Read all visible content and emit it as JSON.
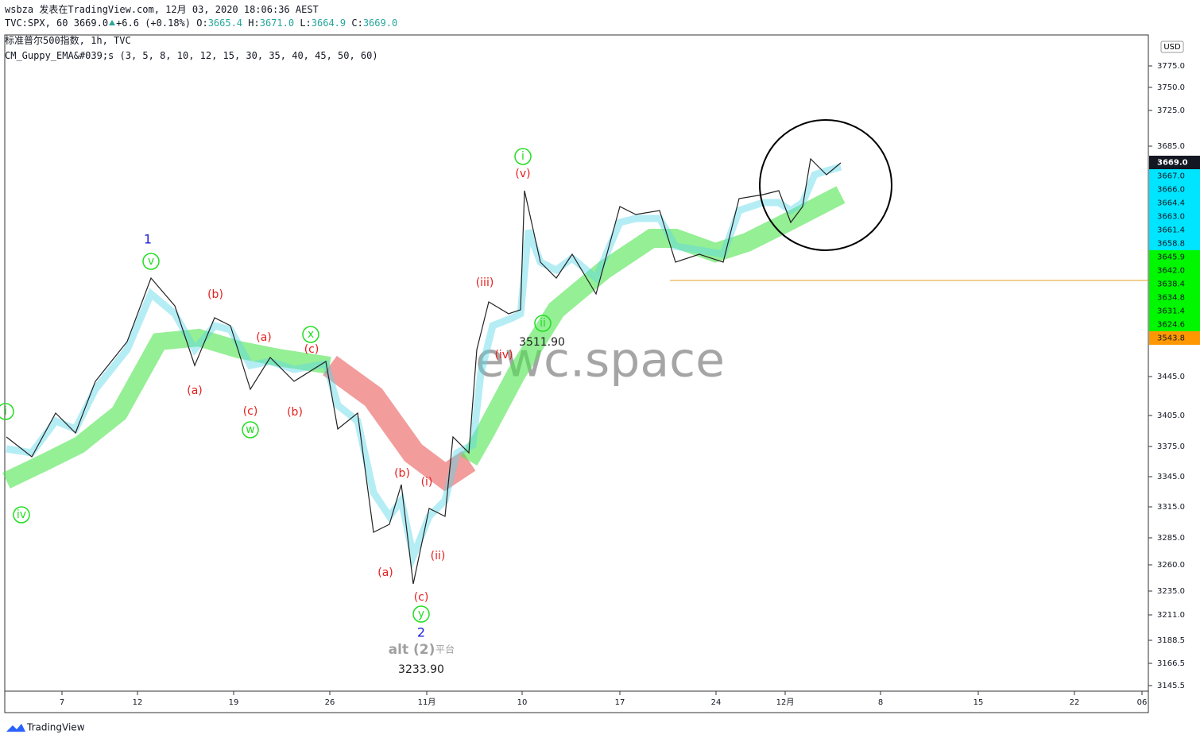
{
  "header": {
    "line1": "wsbza 发表在TradingView.com, 12月 03, 2020 18:06:36 AEST",
    "symbol": "TVC:SPX, 60",
    "last": "3669.0",
    "change": "+6.6 (+0.18%)",
    "ohlc": [
      {
        "label": "O:",
        "value": "3665.4"
      },
      {
        "label": "H:",
        "value": "3671.0"
      },
      {
        "label": "L:",
        "value": "3664.9"
      },
      {
        "label": "C:",
        "value": "3669.0"
      }
    ],
    "title": "标准普尔500指数, 1h, TVC",
    "indicator": "CM_Guppy_EMA&#039;s (3, 5, 8, 10, 12, 15, 30, 35, 40, 45, 50, 60)"
  },
  "price_axis": {
    "currency": "USD",
    "ticks": [
      "3775.0",
      "3750.0",
      "3725.0",
      "3685.0",
      "3445.0",
      "3405.0",
      "3375.0",
      "3345.0",
      "3315.0",
      "3285.0",
      "3260.0",
      "3235.0",
      "3211.0",
      "3188.5",
      "3166.5",
      "3145.5"
    ],
    "badges": [
      {
        "text": "3669.0",
        "color": "#131722"
      },
      {
        "text": "3667.0",
        "color": "#00e5ff"
      },
      {
        "text": "3666.0",
        "color": "#00e5ff"
      },
      {
        "text": "3664.4",
        "color": "#00e5ff"
      },
      {
        "text": "3663.0",
        "color": "#00e5ff"
      },
      {
        "text": "3661.4",
        "color": "#00e5ff"
      },
      {
        "text": "3658.8",
        "color": "#00e5ff"
      },
      {
        "text": "3645.9",
        "color": "#00f700"
      },
      {
        "text": "3642.0",
        "color": "#00f700"
      },
      {
        "text": "3638.4",
        "color": "#00f700"
      },
      {
        "text": "3634.8",
        "color": "#00f700"
      },
      {
        "text": "3631.4",
        "color": "#00f700"
      },
      {
        "text": "3624.6",
        "color": "#00f700"
      },
      {
        "text": "3543.8",
        "color": "#ff9800"
      }
    ]
  },
  "time_axis": {
    "labels": [
      "7",
      "12",
      "19",
      "26",
      "11月",
      "10",
      "17",
      "24",
      "12月",
      "8",
      "15",
      "22",
      "06"
    ]
  },
  "annotations": [
    {
      "text": "1",
      "color": "#1e22d8"
    },
    {
      "text": "v",
      "color": "#22dd22",
      "circled": true
    },
    {
      "text": "(b)",
      "color": "#e61e1e"
    },
    {
      "text": "(a)",
      "color": "#e61e1e"
    },
    {
      "text": "(a)",
      "color": "#e61e1e"
    },
    {
      "text": "x",
      "color": "#22dd22",
      "circled": true
    },
    {
      "text": "(c)",
      "color": "#e61e1e"
    },
    {
      "text": "(c)",
      "color": "#e61e1e"
    },
    {
      "text": "w",
      "color": "#22dd22",
      "circled": true
    },
    {
      "text": "(b)",
      "color": "#e61e1e"
    },
    {
      "text": "iv",
      "color": "#22dd22",
      "circled": true
    },
    {
      "text": "i",
      "color": "#22dd22",
      "circled": true
    },
    {
      "text": "(b)",
      "color": "#e61e1e"
    },
    {
      "text": "(i)",
      "color": "#e61e1e"
    },
    {
      "text": "(a)",
      "color": "#e61e1e"
    },
    {
      "text": "(ii)",
      "color": "#e61e1e"
    },
    {
      "text": "(c)",
      "color": "#e61e1e"
    },
    {
      "text": "y",
      "color": "#22dd22",
      "circled": true
    },
    {
      "text": "2",
      "color": "#1e22d8"
    },
    {
      "text": "alt (2)",
      "color": "#a0a0a0"
    },
    {
      "text": "平台",
      "color": "#a0a0a0"
    },
    {
      "text": "3233.90",
      "color": "#222222"
    },
    {
      "text": "(iii)",
      "color": "#e61e1e"
    },
    {
      "text": "(iv)",
      "color": "#e61e1e"
    },
    {
      "text": "ii",
      "color": "#22dd22",
      "circled": true
    },
    {
      "text": "3511.90",
      "color": "#222222"
    },
    {
      "text": "i",
      "color": "#22dd22",
      "circled": true
    },
    {
      "text": "(v)",
      "color": "#e61e1e"
    }
  ],
  "watermark": "ewc.space",
  "footer": "TradingView"
}
